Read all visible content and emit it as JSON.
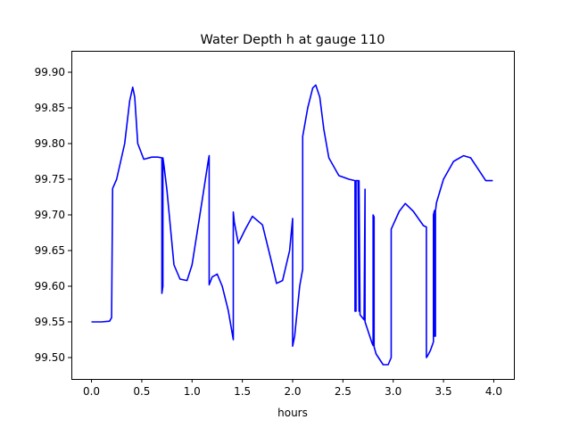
{
  "chart_data": {
    "type": "line",
    "title": "Water Depth h at gauge 110",
    "xlabel": "hours",
    "ylabel": "",
    "xlim": [
      -0.2,
      4.2
    ],
    "ylim": [
      99.47,
      99.93
    ],
    "xticks": [
      0.0,
      0.5,
      1.0,
      1.5,
      2.0,
      2.5,
      3.0,
      3.5,
      4.0
    ],
    "xtick_labels": [
      "0.0",
      "0.5",
      "1.0",
      "1.5",
      "2.0",
      "2.5",
      "3.0",
      "3.5",
      "4.0"
    ],
    "yticks": [
      99.5,
      99.55,
      99.6,
      99.65,
      99.7,
      99.75,
      99.8,
      99.85,
      99.9
    ],
    "ytick_labels": [
      "99.50",
      "99.55",
      "99.60",
      "99.65",
      "99.70",
      "99.75",
      "99.80",
      "99.85",
      "99.90"
    ],
    "grid": false,
    "legend": "none",
    "series": [
      {
        "color": "#0000ff",
        "x": [
          0.0,
          0.1,
          0.18,
          0.2,
          0.21,
          0.25,
          0.33,
          0.38,
          0.41,
          0.43,
          0.46,
          0.52,
          0.6,
          0.66,
          0.7,
          0.7,
          0.71,
          0.71,
          0.72,
          0.75,
          0.82,
          0.88,
          0.95,
          1.0,
          1.1,
          1.16,
          1.17,
          1.17,
          1.2,
          1.25,
          1.3,
          1.36,
          1.41,
          1.41,
          1.42,
          1.46,
          1.53,
          1.6,
          1.7,
          1.78,
          1.84,
          1.9,
          1.97,
          2.0,
          2.0,
          2.02,
          2.07,
          2.1,
          2.1,
          2.15,
          2.2,
          2.23,
          2.27,
          2.31,
          2.36,
          2.46,
          2.56,
          2.62,
          2.62,
          2.63,
          2.63,
          2.65,
          2.66,
          2.66,
          2.67,
          2.71,
          2.72,
          2.72,
          2.79,
          2.8,
          2.8,
          2.81,
          2.81,
          2.83,
          2.9,
          2.95,
          2.98,
          2.98,
          3.06,
          3.12,
          3.2,
          3.3,
          3.33,
          3.33,
          3.34,
          3.37,
          3.4,
          3.4,
          3.41,
          3.41,
          3.42,
          3.42,
          3.43,
          3.5,
          3.6,
          3.7,
          3.77,
          3.85,
          3.92,
          3.99
        ],
        "y": [
          99.55,
          99.55,
          99.551,
          99.556,
          99.737,
          99.75,
          99.8,
          99.86,
          99.879,
          99.865,
          99.8,
          99.778,
          99.781,
          99.781,
          99.78,
          99.59,
          99.6,
          99.78,
          99.77,
          99.735,
          99.63,
          99.61,
          99.608,
          99.63,
          99.72,
          99.775,
          99.783,
          99.602,
          99.613,
          99.617,
          99.6,
          99.566,
          99.525,
          99.704,
          99.69,
          99.66,
          99.68,
          99.698,
          99.686,
          99.64,
          99.604,
          99.608,
          99.65,
          99.695,
          99.516,
          99.53,
          99.6,
          99.624,
          99.81,
          99.85,
          99.878,
          99.882,
          99.865,
          99.82,
          99.78,
          99.755,
          99.75,
          99.748,
          99.565,
          99.565,
          99.748,
          99.748,
          99.565,
          99.748,
          99.56,
          99.553,
          99.736,
          99.55,
          99.52,
          99.517,
          99.7,
          99.697,
          99.515,
          99.505,
          99.49,
          99.49,
          99.5,
          99.68,
          99.705,
          99.716,
          99.705,
          99.685,
          99.683,
          99.5,
          99.502,
          99.51,
          99.522,
          99.7,
          99.706,
          99.53,
          99.53,
          99.705,
          99.717,
          99.75,
          99.775,
          99.783,
          99.78,
          99.763,
          99.748,
          99.748
        ]
      }
    ]
  }
}
